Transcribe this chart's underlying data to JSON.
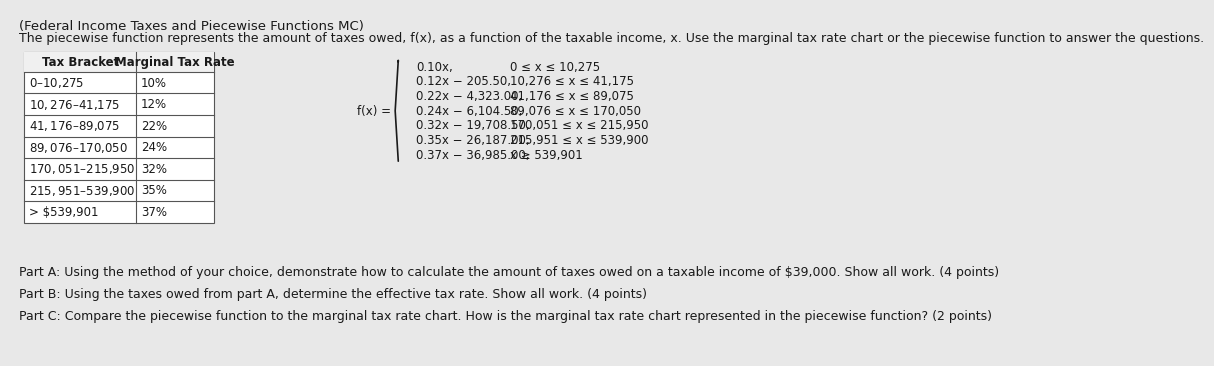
{
  "bg_color": "#e8e8e8",
  "title_line": "(Federal Income Taxes and Piecewise Functions MC)",
  "intro_text": "The piecewise function represents the amount of taxes owed, f(x), as a function of the taxable income, x. Use the marginal tax rate chart or the piecewise function to answer the questions.",
  "table_headers": [
    "Tax Bracket",
    "Marginal Tax Rate"
  ],
  "table_rows": [
    [
      "$0–$10,275",
      "10%"
    ],
    [
      "$10,276–$41,175",
      "12%"
    ],
    [
      "$41,176–$89,075",
      "22%"
    ],
    [
      "$89,076–$170,050",
      "24%"
    ],
    [
      "$170,051–$215,950",
      "32%"
    ],
    [
      "$215,951–$539,900",
      "35%"
    ],
    [
      "> $539,901",
      "37%"
    ]
  ],
  "piecewise_label": "f(x) =",
  "piecewise_lines": [
    [
      "0.10x,",
      "0 ≤ x ≤ 10,275"
    ],
    [
      "0.12x − 205.50,",
      "10,276 ≤ x ≤ 41,175"
    ],
    [
      "0.22x − 4,323.00,",
      "41,176 ≤ x ≤ 89,075"
    ],
    [
      "0.24x − 6,104.50,",
      "89,076 ≤ x ≤ 170,050"
    ],
    [
      "0.32x − 19,708.50,",
      "170,051 ≤ x ≤ 215,950"
    ],
    [
      "0.35x − 26,187.00,",
      "215,951 ≤ x ≤ 539,900"
    ],
    [
      "0.37x − 36,985.00,",
      "x ≥ 539,901"
    ]
  ],
  "part_a": "Part A: Using the method of your choice, demonstrate how to calculate the amount of taxes owed on a taxable income of $39,000. Show all work. (4 points)",
  "part_b": "Part B: Using the taxes owed from part A, determine the effective tax rate. Show all work. (4 points)",
  "part_c": "Part C: Compare the piecewise function to the marginal tax rate chart. How is the marginal tax rate chart represented in the piecewise function? (2 points)",
  "text_color": "#1a1a1a",
  "table_border_color": "#555555",
  "font_size_title": 9.5,
  "font_size_intro": 9.0,
  "font_size_table": 8.5,
  "font_size_piecewise": 8.5,
  "font_size_parts": 9.0
}
